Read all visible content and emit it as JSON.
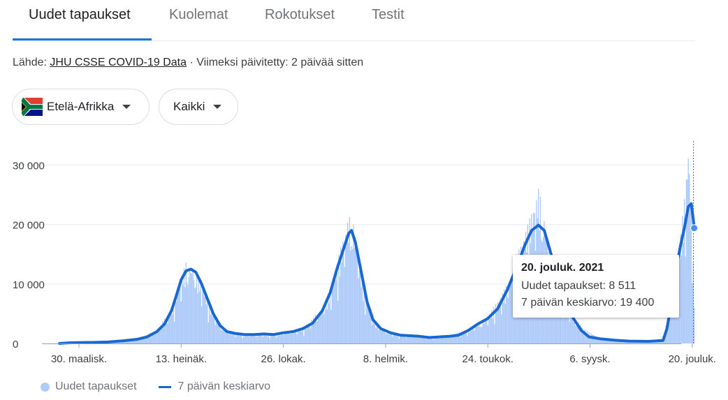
{
  "tabs": [
    {
      "label": "Uudet tapaukset"
    },
    {
      "label": "Kuolemat"
    },
    {
      "label": "Rokotukset"
    },
    {
      "label": "Testit"
    }
  ],
  "source": {
    "prefix": "Lähde:",
    "link": "JHU CSSE COVID-19 Data",
    "suffix": "· Viimeksi päivitetty: 2 päivää sitten"
  },
  "filters": {
    "region": "Etelä-Afrikka",
    "region_icon": "south-africa-flag-icon",
    "scope": "Kaikki"
  },
  "tooltip": {
    "date": "20. jouluk. 2021",
    "cases_line": "Uudet tapaukset: 8 511",
    "avg_line": "7 päivän keskiarvo: 19 400"
  },
  "legend": {
    "bars": "Uudet tapaukset",
    "line": "7 päivän keskiarvo"
  },
  "colors": {
    "bars": "#aecbfa",
    "line": "#1967d2",
    "active_tab": "#1a73e8"
  },
  "chart_data": {
    "type": "bar",
    "x_ticks": [
      "30. maalisk.",
      "13. heinäk.",
      "26. lokak.",
      "8. helmik.",
      "24. toukok.",
      "6. syysk.",
      "20. jouluk."
    ],
    "x_tick_days": [
      0,
      105,
      210,
      315,
      420,
      525,
      630
    ],
    "ylim": [
      0,
      34000
    ],
    "y_ticks": [
      0,
      10000,
      20000,
      30000
    ],
    "y_tick_labels": [
      "0",
      "10 000",
      "20 000",
      "30 000"
    ],
    "series": [
      {
        "name": "7 päivän keskiarvo",
        "type": "line",
        "points": [
          [
            -20,
            0
          ],
          [
            -10,
            100
          ],
          [
            0,
            150
          ],
          [
            15,
            180
          ],
          [
            30,
            250
          ],
          [
            45,
            450
          ],
          [
            60,
            700
          ],
          [
            70,
            1100
          ],
          [
            80,
            2000
          ],
          [
            88,
            3300
          ],
          [
            95,
            5500
          ],
          [
            100,
            8000
          ],
          [
            105,
            10700
          ],
          [
            110,
            12200
          ],
          [
            115,
            12500
          ],
          [
            120,
            12000
          ],
          [
            126,
            10000
          ],
          [
            132,
            7500
          ],
          [
            138,
            5000
          ],
          [
            145,
            3000
          ],
          [
            152,
            2000
          ],
          [
            160,
            1700
          ],
          [
            170,
            1500
          ],
          [
            180,
            1500
          ],
          [
            190,
            1600
          ],
          [
            200,
            1500
          ],
          [
            210,
            1800
          ],
          [
            220,
            2000
          ],
          [
            230,
            2500
          ],
          [
            240,
            3400
          ],
          [
            250,
            5500
          ],
          [
            258,
            8500
          ],
          [
            265,
            12500
          ],
          [
            272,
            16000
          ],
          [
            277,
            18500
          ],
          [
            280,
            19000
          ],
          [
            284,
            17000
          ],
          [
            290,
            12000
          ],
          [
            296,
            7000
          ],
          [
            302,
            4000
          ],
          [
            310,
            2500
          ],
          [
            320,
            1800
          ],
          [
            330,
            1400
          ],
          [
            340,
            1300
          ],
          [
            350,
            1200
          ],
          [
            360,
            1000
          ],
          [
            370,
            1100
          ],
          [
            380,
            1200
          ],
          [
            390,
            1400
          ],
          [
            400,
            2200
          ],
          [
            410,
            3300
          ],
          [
            420,
            4200
          ],
          [
            430,
            5800
          ],
          [
            440,
            9000
          ],
          [
            450,
            13000
          ],
          [
            458,
            16500
          ],
          [
            465,
            19000
          ],
          [
            472,
            19900
          ],
          [
            478,
            19000
          ],
          [
            485,
            15000
          ],
          [
            492,
            10000
          ],
          [
            500,
            6500
          ],
          [
            508,
            4200
          ],
          [
            516,
            2200
          ],
          [
            524,
            1100
          ],
          [
            535,
            800
          ],
          [
            550,
            550
          ],
          [
            565,
            400
          ],
          [
            585,
            350
          ],
          [
            600,
            500
          ],
          [
            604,
            2500
          ],
          [
            610,
            8000
          ],
          [
            614,
            13000
          ],
          [
            618,
            16500
          ],
          [
            622,
            19500
          ],
          [
            626,
            23000
          ],
          [
            629,
            23500
          ],
          [
            631,
            21000
          ],
          [
            632,
            19400
          ]
        ]
      },
      {
        "name": "Uudet tapaukset",
        "type": "bar",
        "peaks": [
          [
            -20,
            0
          ],
          [
            0,
            150
          ],
          [
            30,
            250
          ],
          [
            60,
            800
          ],
          [
            80,
            2300
          ],
          [
            95,
            6000
          ],
          [
            105,
            11500
          ],
          [
            110,
            13600
          ],
          [
            115,
            13200
          ],
          [
            120,
            12500
          ],
          [
            128,
            9500
          ],
          [
            138,
            5200
          ],
          [
            150,
            2300
          ],
          [
            170,
            1600
          ],
          [
            200,
            1600
          ],
          [
            230,
            2600
          ],
          [
            250,
            6000
          ],
          [
            260,
            10000
          ],
          [
            270,
            17000
          ],
          [
            276,
            21000
          ],
          [
            280,
            21800
          ],
          [
            285,
            18000
          ],
          [
            292,
            10000
          ],
          [
            305,
            3500
          ],
          [
            320,
            1800
          ],
          [
            350,
            1300
          ],
          [
            380,
            1300
          ],
          [
            400,
            2400
          ],
          [
            420,
            4500
          ],
          [
            440,
            10000
          ],
          [
            455,
            17500
          ],
          [
            462,
            20500
          ],
          [
            468,
            24000
          ],
          [
            472,
            26300
          ],
          [
            476,
            23000
          ],
          [
            482,
            18000
          ],
          [
            492,
            10500
          ],
          [
            505,
            5000
          ],
          [
            520,
            2400
          ],
          [
            535,
            900
          ],
          [
            560,
            500
          ],
          [
            590,
            350
          ],
          [
            600,
            500
          ],
          [
            605,
            5000
          ],
          [
            612,
            11000
          ],
          [
            618,
            18500
          ],
          [
            623,
            26000
          ],
          [
            626,
            34000
          ],
          [
            628,
            27000
          ],
          [
            630,
            19000
          ],
          [
            632,
            8511
          ]
        ]
      }
    ],
    "highlight": {
      "day": 632,
      "value": 19400
    }
  }
}
